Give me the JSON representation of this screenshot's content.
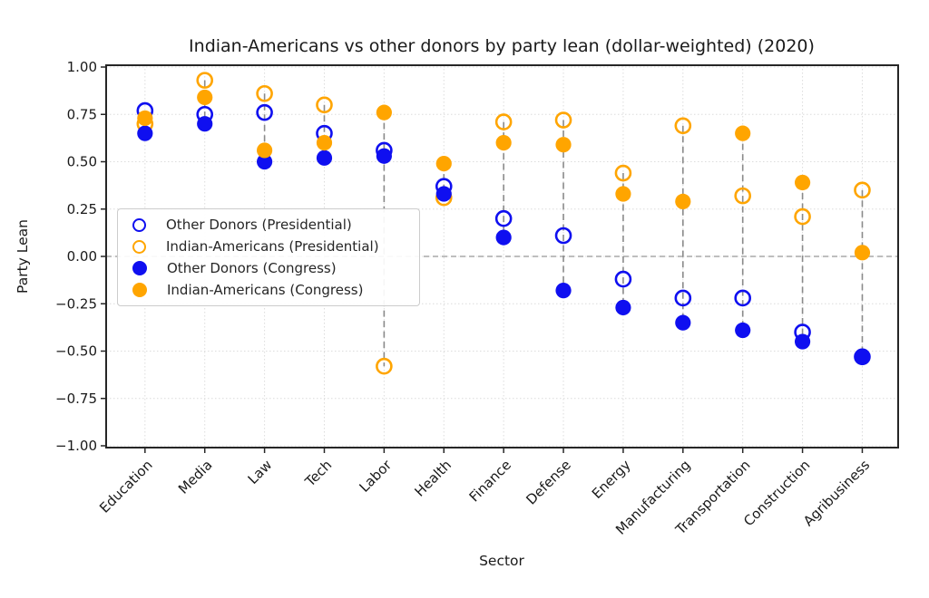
{
  "figure": {
    "background": "#ffffff",
    "text_color": "#1a1a1a"
  },
  "chart_data": {
    "type": "scatter",
    "title": "Indian-Americans vs other donors by party lean (dollar-weighted) (2020)",
    "xlabel": "Sector",
    "ylabel": "Party Lean",
    "categories": [
      "Education",
      "Media",
      "Law",
      "Tech",
      "Labor",
      "Health",
      "Finance",
      "Defense",
      "Energy",
      "Manufacturing",
      "Transportation",
      "Construction",
      "Agribusiness"
    ],
    "y_tick_labels": [
      "1.00",
      "0.75",
      "0.50",
      "0.25",
      "0.00",
      "−0.25",
      "−0.50",
      "−0.75",
      "−1.00"
    ],
    "y_tick_values": [
      1.0,
      0.75,
      0.5,
      0.25,
      0.0,
      -0.25,
      -0.5,
      -0.75,
      -1.0
    ],
    "ylim": [
      -1.01,
      1.01
    ],
    "grid": true,
    "zero_line": true,
    "x_tick_rotation": 45,
    "legend_position": "upper-left-inside",
    "connector_style": "vertical dashed line spanning min to max value in each sector",
    "series": [
      {
        "key": "other-donors-presidential",
        "name": "Other Donors (Presidential)",
        "marker": "open-circle",
        "style": "open",
        "color": "#0f0ff0",
        "values": [
          0.77,
          0.75,
          0.76,
          0.65,
          0.56,
          0.37,
          0.2,
          0.11,
          -0.12,
          -0.22,
          -0.22,
          -0.4,
          -0.53
        ]
      },
      {
        "key": "indian-americans-presidential",
        "name": "Indian-Americans (Presidential)",
        "marker": "open-circle",
        "style": "open",
        "color": "#ffa500",
        "values": [
          0.7,
          0.93,
          0.86,
          0.8,
          -0.58,
          0.31,
          0.71,
          0.72,
          0.44,
          0.69,
          0.32,
          0.21,
          0.35
        ]
      },
      {
        "key": "other-donors-congress",
        "name": "Other Donors (Congress)",
        "marker": "filled-circle",
        "style": "filled",
        "color": "#0f0ff0",
        "values": [
          0.65,
          0.7,
          0.5,
          0.52,
          0.53,
          0.33,
          0.1,
          -0.18,
          -0.27,
          -0.35,
          -0.39,
          -0.45,
          -0.53
        ]
      },
      {
        "key": "indian-americans-congress",
        "name": "Indian-Americans (Congress)",
        "marker": "filled-circle",
        "style": "filled",
        "color": "#ffa500",
        "values": [
          0.73,
          0.84,
          0.56,
          0.6,
          0.76,
          0.49,
          0.6,
          0.59,
          0.33,
          0.29,
          0.65,
          0.39,
          0.02
        ]
      }
    ]
  }
}
